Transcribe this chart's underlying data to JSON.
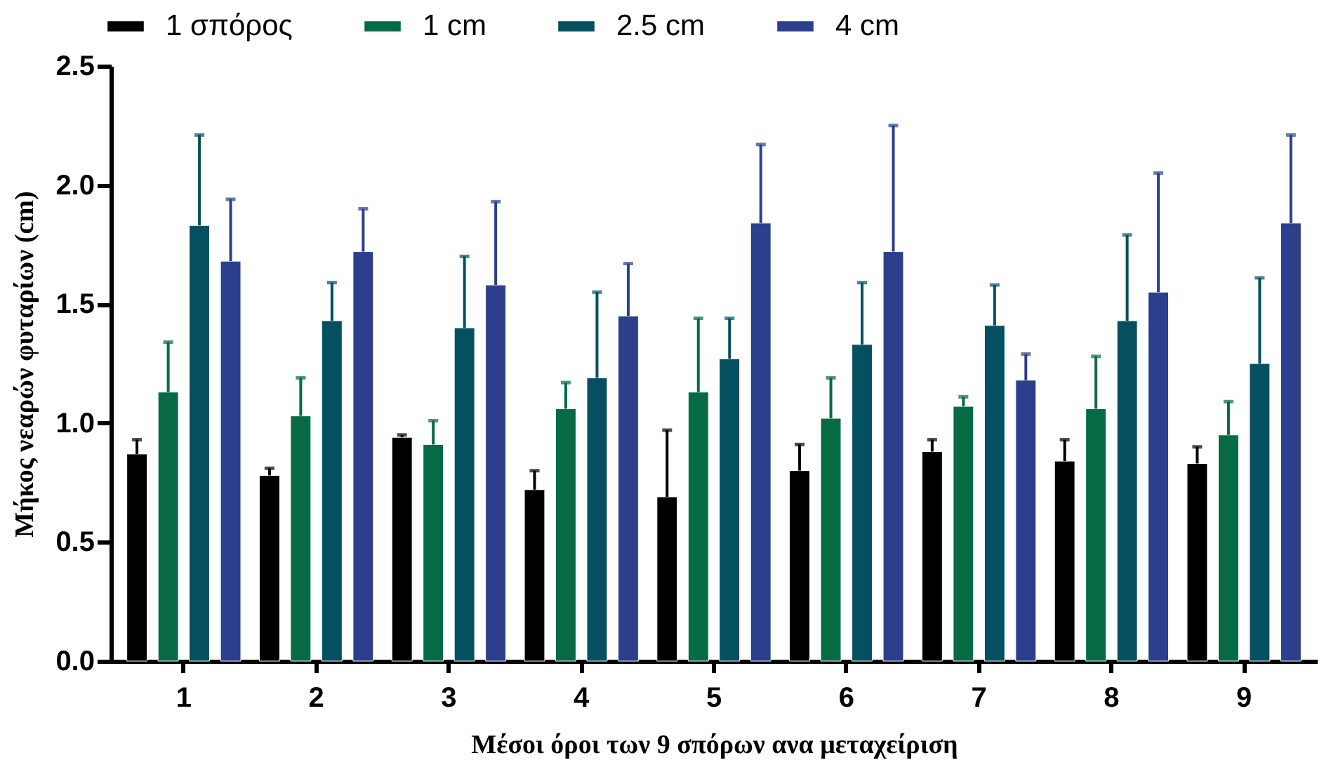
{
  "chart_data": {
    "type": "bar",
    "xlabel": "Μέσοι όροι των 9 σπόρων ανα μεταχείριση",
    "ylabel": "Μήκος νεαρών φυταρίων (cm)",
    "categories": [
      "1",
      "2",
      "3",
      "4",
      "5",
      "6",
      "7",
      "8",
      "9"
    ],
    "series": [
      {
        "name": "1 σπόρος",
        "color": "#000000",
        "values": [
          0.87,
          0.78,
          0.94,
          0.72,
          0.69,
          0.8,
          0.88,
          0.84,
          0.83
        ],
        "errors": [
          [
            0.87,
            0.93
          ],
          [
            0.78,
            0.81
          ],
          [
            0.94,
            0.95
          ],
          [
            0.72,
            0.8
          ],
          [
            0.69,
            0.97
          ],
          [
            0.8,
            0.91
          ],
          [
            0.88,
            0.93
          ],
          [
            0.84,
            0.93
          ],
          [
            0.83,
            0.9
          ]
        ]
      },
      {
        "name": "1 cm",
        "color": "#066b45",
        "values": [
          1.13,
          1.03,
          0.91,
          1.06,
          1.13,
          1.02,
          1.07,
          1.06,
          0.95
        ],
        "errors": [
          [
            1.13,
            1.34
          ],
          [
            1.03,
            1.19
          ],
          [
            0.91,
            1.01
          ],
          [
            1.06,
            1.17
          ],
          [
            1.13,
            1.44
          ],
          [
            1.02,
            1.19
          ],
          [
            1.07,
            1.11
          ],
          [
            1.06,
            1.28
          ],
          [
            0.95,
            1.09
          ]
        ]
      },
      {
        "name": "2.5 cm",
        "color": "#044f60",
        "values": [
          1.83,
          1.43,
          1.4,
          1.19,
          1.27,
          1.33,
          1.41,
          1.43,
          1.25
        ],
        "errors": [
          [
            1.83,
            2.21
          ],
          [
            1.43,
            1.59
          ],
          [
            1.4,
            1.7
          ],
          [
            1.19,
            1.55
          ],
          [
            1.27,
            1.44
          ],
          [
            1.33,
            1.59
          ],
          [
            1.41,
            1.58
          ],
          [
            1.43,
            1.79
          ],
          [
            1.25,
            1.61
          ]
        ]
      },
      {
        "name": "4 cm",
        "color": "#2b3f8c",
        "values": [
          1.68,
          1.72,
          1.58,
          1.45,
          1.84,
          1.72,
          1.18,
          1.55,
          1.84
        ],
        "errors": [
          [
            1.68,
            1.94
          ],
          [
            1.72,
            1.9
          ],
          [
            1.58,
            1.93
          ],
          [
            1.45,
            1.67
          ],
          [
            1.84,
            2.17
          ],
          [
            1.72,
            2.25
          ],
          [
            1.18,
            1.29
          ],
          [
            1.55,
            2.05
          ],
          [
            1.84,
            2.21
          ]
        ]
      }
    ],
    "ylim": [
      0,
      2.5
    ],
    "yticks": [
      {
        "value": 0,
        "label": "0.0"
      },
      {
        "value": 0.5,
        "label": "0.5"
      },
      {
        "value": 1,
        "label": "1.0"
      },
      {
        "value": 1.5,
        "label": "1.5"
      },
      {
        "value": 2,
        "label": "2.0"
      },
      {
        "value": 2.5,
        "label": "2.5"
      }
    ],
    "legend": "top",
    "grid": false
  }
}
